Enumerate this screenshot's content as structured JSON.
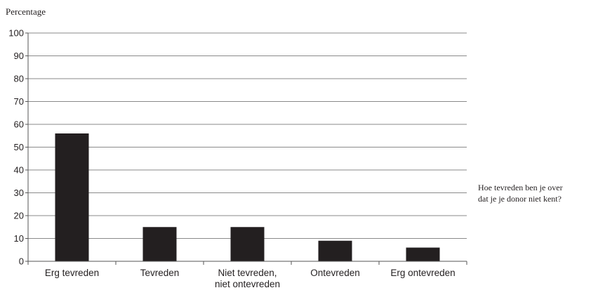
{
  "chart_data": {
    "type": "bar",
    "ylabel": "Percentage",
    "xlabel": "",
    "ylim": [
      0,
      100
    ],
    "yticks": [
      0,
      10,
      20,
      30,
      40,
      50,
      60,
      70,
      80,
      90,
      100
    ],
    "grid": true,
    "categories": [
      [
        "Erg tevreden"
      ],
      [
        "Tevreden"
      ],
      [
        "Niet tevreden,",
        "niet ontevreden"
      ],
      [
        "Ontevreden"
      ],
      [
        "Erg ontevreden"
      ]
    ],
    "values": [
      56,
      15,
      15,
      9,
      6
    ],
    "annotation": [
      "Hoe tevreden ben je over",
      "dat je je donor niet kent?"
    ],
    "colors": {
      "bar": "#231f20",
      "grid": "#8a8a8a",
      "axis": "#555555"
    }
  }
}
